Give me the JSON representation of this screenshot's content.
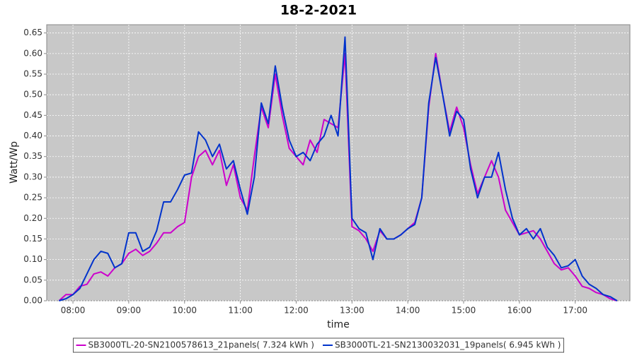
{
  "chart_data": {
    "type": "line",
    "title": "18-2-2021",
    "x_label": "time",
    "y_label": "Watt/Wp",
    "x": [
      7.75,
      7.875,
      8,
      8.125,
      8.25,
      8.375,
      8.5,
      8.625,
      8.75,
      8.875,
      9,
      9.125,
      9.25,
      9.375,
      9.5,
      9.625,
      9.75,
      9.875,
      10,
      10.125,
      10.25,
      10.375,
      10.5,
      10.625,
      10.75,
      10.875,
      11,
      11.125,
      11.25,
      11.375,
      11.5,
      11.625,
      11.75,
      11.875,
      12,
      12.125,
      12.25,
      12.375,
      12.5,
      12.625,
      12.75,
      12.875,
      13,
      13.125,
      13.25,
      13.375,
      13.5,
      13.625,
      13.75,
      13.875,
      14,
      14.125,
      14.25,
      14.375,
      14.5,
      14.625,
      14.75,
      14.875,
      15,
      15.125,
      15.25,
      15.375,
      15.5,
      15.625,
      15.75,
      15.875,
      16,
      16.125,
      16.25,
      16.375,
      16.5,
      16.625,
      16.75,
      16.875,
      17,
      17.125,
      17.25,
      17.375,
      17.5,
      17.625,
      17.75
    ],
    "series": [
      {
        "name": "SB3000TL-20-SN2100578613_21panels( 7.324 kWh )",
        "color": "#cc00cc",
        "values": [
          0,
          0.015,
          0.015,
          0.035,
          0.04,
          0.065,
          0.07,
          0.06,
          0.08,
          0.09,
          0.115,
          0.125,
          0.11,
          0.12,
          0.14,
          0.165,
          0.165,
          0.18,
          0.19,
          0.3,
          0.35,
          0.365,
          0.33,
          0.365,
          0.28,
          0.33,
          0.25,
          0.22,
          0.35,
          0.47,
          0.42,
          0.55,
          0.45,
          0.37,
          0.35,
          0.33,
          0.39,
          0.36,
          0.44,
          0.43,
          0.42,
          0.6,
          0.18,
          0.17,
          0.15,
          0.12,
          0.17,
          0.15,
          0.15,
          0.16,
          0.175,
          0.19,
          0.25,
          0.47,
          0.6,
          0.5,
          0.41,
          0.47,
          0.42,
          0.33,
          0.26,
          0.3,
          0.34,
          0.3,
          0.22,
          0.19,
          0.16,
          0.165,
          0.17,
          0.15,
          0.12,
          0.09,
          0.075,
          0.08,
          0.06,
          0.035,
          0.03,
          0.02,
          0.015,
          0.005,
          0
        ]
      },
      {
        "name": "SB3000TL-21-SN2130032031_19panels( 6.945 kWh )",
        "color": "#0033cc",
        "values": [
          0,
          0.005,
          0.015,
          0.03,
          0.065,
          0.1,
          0.12,
          0.115,
          0.08,
          0.09,
          0.165,
          0.165,
          0.12,
          0.13,
          0.17,
          0.24,
          0.24,
          0.27,
          0.305,
          0.31,
          0.41,
          0.39,
          0.35,
          0.38,
          0.32,
          0.34,
          0.27,
          0.21,
          0.3,
          0.48,
          0.43,
          0.57,
          0.47,
          0.39,
          0.35,
          0.36,
          0.34,
          0.38,
          0.4,
          0.45,
          0.4,
          0.64,
          0.2,
          0.175,
          0.165,
          0.1,
          0.175,
          0.15,
          0.15,
          0.16,
          0.175,
          0.185,
          0.25,
          0.48,
          0.59,
          0.5,
          0.4,
          0.46,
          0.44,
          0.32,
          0.25,
          0.3,
          0.3,
          0.36,
          0.27,
          0.2,
          0.16,
          0.175,
          0.15,
          0.175,
          0.13,
          0.11,
          0.08,
          0.085,
          0.1,
          0.06,
          0.04,
          0.03,
          0.015,
          0.01,
          0
        ]
      }
    ],
    "xlim": [
      7.53,
      17.98
    ],
    "xticks": [
      {
        "value": 8,
        "label": "08:00"
      },
      {
        "value": 9,
        "label": "09:00"
      },
      {
        "value": 10,
        "label": "10:00"
      },
      {
        "value": 11,
        "label": "11:00"
      },
      {
        "value": 12,
        "label": "12:00"
      },
      {
        "value": 13,
        "label": "13:00"
      },
      {
        "value": 14,
        "label": "14:00"
      },
      {
        "value": 15,
        "label": "15:00"
      },
      {
        "value": 16,
        "label": "16:00"
      },
      {
        "value": 17,
        "label": "17:00"
      }
    ],
    "ylim": [
      0,
      0.67
    ],
    "yticks": [
      {
        "value": 0,
        "label": "0.00"
      },
      {
        "value": 0.05,
        "label": "0.05"
      },
      {
        "value": 0.1,
        "label": "0.10"
      },
      {
        "value": 0.15,
        "label": "0.15"
      },
      {
        "value": 0.2,
        "label": "0.20"
      },
      {
        "value": 0.25,
        "label": "0.25"
      },
      {
        "value": 0.3,
        "label": "0.30"
      },
      {
        "value": 0.35,
        "label": "0.35"
      },
      {
        "value": 0.4,
        "label": "0.40"
      },
      {
        "value": 0.45,
        "label": "0.45"
      },
      {
        "value": 0.5,
        "label": "0.50"
      },
      {
        "value": 0.55,
        "label": "0.55"
      },
      {
        "value": 0.6,
        "label": "0.60"
      },
      {
        "value": 0.65,
        "label": "0.65"
      }
    ],
    "grid": true,
    "legend": "bottom"
  }
}
